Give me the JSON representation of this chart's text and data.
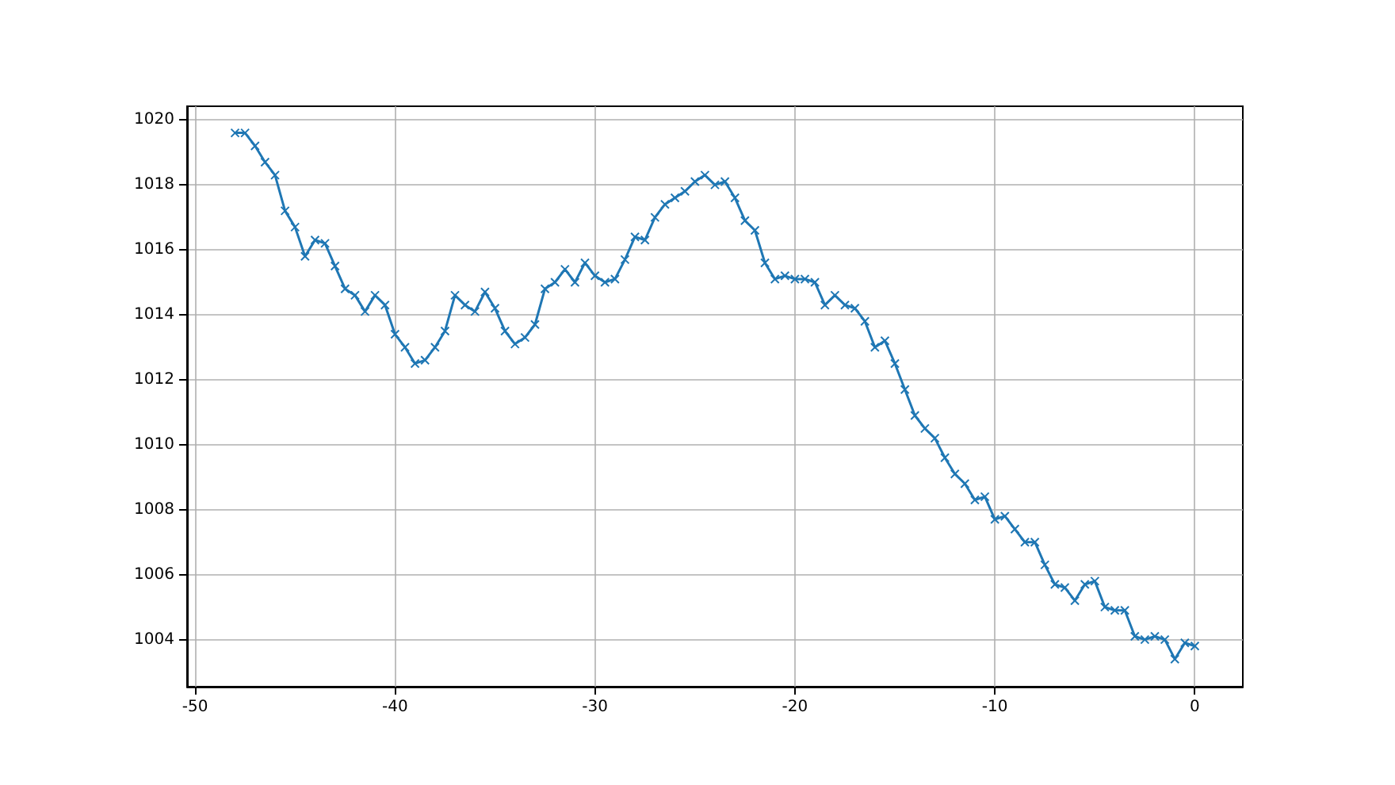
{
  "chart_data": {
    "type": "line",
    "color": "#1f77b4",
    "marker": "cross",
    "grid": true,
    "x": [
      -48,
      -47.5,
      -47,
      -46.5,
      -46,
      -45.5,
      -45,
      -44.5,
      -44,
      -43.5,
      -43,
      -42.5,
      -42,
      -41.5,
      -41,
      -40.5,
      -40,
      -39.5,
      -39,
      -38.5,
      -38,
      -37.5,
      -37,
      -36.5,
      -36,
      -35.5,
      -35,
      -34.5,
      -34,
      -33.5,
      -33,
      -32.5,
      -32,
      -31.5,
      -31,
      -30.5,
      -30,
      -29.5,
      -29,
      -28.5,
      -28,
      -27.5,
      -27,
      -26.5,
      -26,
      -25.5,
      -25,
      -24.5,
      -24,
      -23.5,
      -23,
      -22.5,
      -22,
      -21.5,
      -21,
      -20.5,
      -20,
      -19.5,
      -19,
      -18.5,
      -18,
      -17.5,
      -17,
      -16.5,
      -16,
      -15.5,
      -15,
      -14.5,
      -14,
      -13.5,
      -13,
      -12.5,
      -12,
      -11.5,
      -11,
      -10.5,
      -10,
      -9.5,
      -9,
      -8.5,
      -8,
      -7.5,
      -7,
      -6.5,
      -6,
      -5.5,
      -5,
      -4.5,
      -4,
      -3.5,
      -3,
      -2.5,
      -2,
      -1.5,
      -1,
      -0.5,
      0
    ],
    "values": [
      1019.6,
      1019.6,
      1019.2,
      1018.7,
      1018.3,
      1017.2,
      1016.7,
      1015.8,
      1016.3,
      1016.2,
      1015.5,
      1014.8,
      1014.6,
      1014.1,
      1014.6,
      1014.3,
      1013.4,
      1013.0,
      1012.5,
      1012.6,
      1013.0,
      1013.5,
      1014.6,
      1014.3,
      1014.1,
      1014.7,
      1014.2,
      1013.5,
      1013.1,
      1013.3,
      1013.7,
      1014.8,
      1015.0,
      1015.4,
      1015.0,
      1015.6,
      1015.2,
      1015.0,
      1015.1,
      1015.7,
      1016.4,
      1016.3,
      1017.0,
      1017.4,
      1017.6,
      1017.8,
      1018.1,
      1018.3,
      1018.0,
      1018.1,
      1017.6,
      1016.9,
      1016.6,
      1015.6,
      1015.1,
      1015.2,
      1015.1,
      1015.1,
      1015.0,
      1014.3,
      1014.6,
      1014.3,
      1014.2,
      1013.8,
      1013.0,
      1013.2,
      1012.5,
      1011.7,
      1010.9,
      1010.5,
      1010.2,
      1009.6,
      1009.1,
      1008.8,
      1008.3,
      1008.4,
      1007.7,
      1007.8,
      1007.4,
      1007.0,
      1007.0,
      1006.3,
      1005.7,
      1005.6,
      1005.2,
      1005.7,
      1005.8,
      1005.0,
      1004.9,
      1004.9,
      1004.1,
      1004.0,
      1004.1,
      1004.0,
      1003.4,
      1003.9,
      1003.8
    ],
    "xlim": [
      -50.4,
      2.4
    ],
    "ylim": [
      1002.55,
      1020.42
    ],
    "xticks": [
      -50,
      -40,
      -30,
      -20,
      -10,
      0
    ],
    "yticks": [
      1004,
      1006,
      1008,
      1010,
      1012,
      1014,
      1016,
      1018,
      1020
    ]
  }
}
